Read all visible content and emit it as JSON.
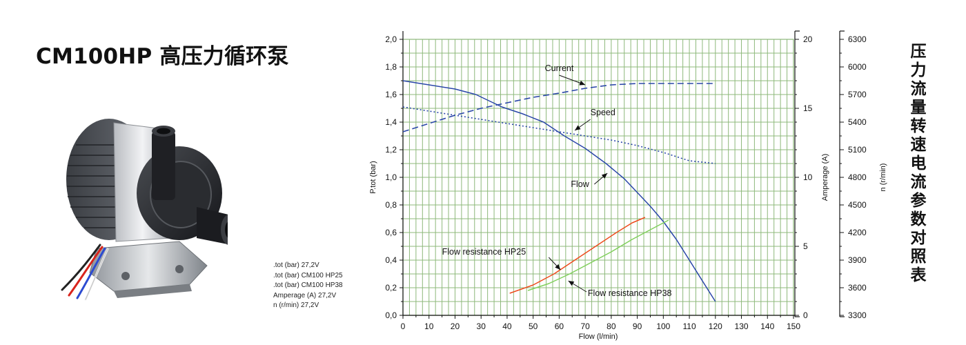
{
  "page": {
    "title": "CM100HP 高压力循环泵",
    "side_title": "压力流量转速电流参数对照表"
  },
  "legend_fragment": [
    ".tot (bar) 27,2V",
    ".tot (bar) CM100 HP25",
    ".tot (bar) CM100 HP38",
    "Amperage (A) 27,2V",
    "n (r/min) 27,2V"
  ],
  "colors": {
    "grid": "#8db87a",
    "blue_curves": "#2a46a8",
    "hp25": "#ee4a1c",
    "hp38": "#7fcf5a",
    "axis": "#111111"
  },
  "chart_data": {
    "type": "line",
    "xlabel": "Flow (l/min)",
    "xlim": [
      0,
      150
    ],
    "x_ticks": [
      "0",
      "10",
      "20",
      "30",
      "40",
      "50",
      "60",
      "70",
      "80",
      "90",
      "100",
      "110",
      "120",
      "130",
      "140",
      "150"
    ],
    "grid": true,
    "left_axis": {
      "label": "P.tot (bar)",
      "lim": [
        0,
        2.0
      ],
      "ticks": [
        "0,0",
        "0,2",
        "0,4",
        "0,6",
        "0,8",
        "1,0",
        "1,2",
        "1,4",
        "1,6",
        "1,8",
        "2,0"
      ]
    },
    "right_axis_1": {
      "label": "Amperage (A)",
      "lim": [
        0,
        20
      ],
      "ticks": [
        "0",
        "5",
        "10",
        "15",
        "20"
      ]
    },
    "right_axis_2": {
      "label": "n (r/min)",
      "lim": [
        3300,
        6300
      ],
      "ticks": [
        "3300",
        "3600",
        "3900",
        "4200",
        "4500",
        "4800",
        "5100",
        "5400",
        "5700",
        "6000",
        "6300"
      ]
    },
    "series": [
      {
        "name": "Flow",
        "axis": "left",
        "style": "solid",
        "color": "#2a46a8",
        "x": [
          0,
          10,
          20,
          28,
          38,
          46,
          54,
          62,
          70,
          78,
          85,
          90,
          95,
          100,
          105,
          110,
          115,
          120
        ],
        "y": [
          1.7,
          1.67,
          1.64,
          1.6,
          1.51,
          1.46,
          1.4,
          1.3,
          1.21,
          1.1,
          0.99,
          0.89,
          0.79,
          0.68,
          0.55,
          0.4,
          0.25,
          0.1
        ]
      },
      {
        "name": "Current",
        "axis": "right_1",
        "style": "dashed",
        "color": "#2a46a8",
        "x": [
          0,
          10,
          20,
          30,
          40,
          50,
          60,
          70,
          80,
          90,
          100,
          110,
          120
        ],
        "y": [
          13.3,
          13.9,
          14.5,
          15.0,
          15.4,
          15.8,
          16.1,
          16.45,
          16.7,
          16.8,
          16.8,
          16.8,
          16.8
        ]
      },
      {
        "name": "Speed",
        "axis": "right_2",
        "style": "dotted",
        "color": "#2a46a8",
        "x": [
          0,
          10,
          20,
          30,
          40,
          50,
          60,
          70,
          80,
          90,
          100,
          110,
          120
        ],
        "y": [
          5565,
          5520,
          5475,
          5430,
          5385,
          5340,
          5295,
          5250,
          5205,
          5145,
          5070,
          4980,
          4950
        ]
      },
      {
        "name": "Flow resistance HP25",
        "axis": "left",
        "style": "solid",
        "color": "#ee4a1c",
        "x": [
          41,
          50,
          58,
          66,
          74,
          82,
          88,
          93
        ],
        "y": [
          0.16,
          0.22,
          0.3,
          0.4,
          0.5,
          0.6,
          0.67,
          0.71
        ]
      },
      {
        "name": "Flow resistance HP38",
        "axis": "left",
        "style": "solid",
        "color": "#7fcf5a",
        "x": [
          48,
          56,
          64,
          72,
          80,
          88,
          96,
          102
        ],
        "y": [
          0.18,
          0.23,
          0.3,
          0.38,
          0.46,
          0.55,
          0.63,
          0.69
        ]
      }
    ],
    "annotations": [
      "Current",
      "Speed",
      "Flow",
      "Flow resistance HP25",
      "Flow resistance HP38"
    ]
  }
}
